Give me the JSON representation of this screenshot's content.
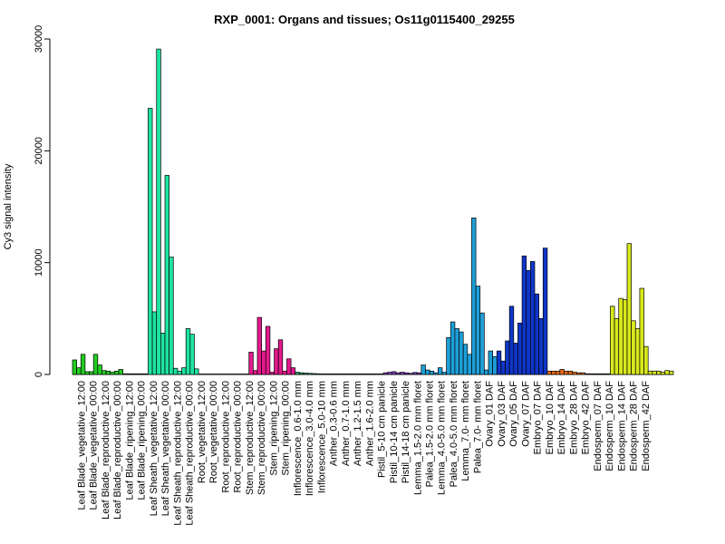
{
  "chart_data": {
    "type": "bar",
    "title": "RXP_0001: Organs and tissues; Os11g0115400_29255",
    "ylabel": "Cy3 signal intensity",
    "ylim": [
      0,
      30000
    ],
    "yticks": [
      0,
      10000,
      20000,
      30000
    ],
    "x_tick_labels": [
      "Leaf Blade_vegetative_12:00",
      "Leaf Blade_vegetative_00:00",
      "Leaf Blade_reproductive_12:00",
      "Leaf Blade_reproductive_00:00",
      "Leaf Blade_ripening_12:00",
      "Leaf Blade_ripening_00:00",
      "Leaf Sheath_vegetative_12:00",
      "Leaf Sheath_vegetative_00:00",
      "Leaf Sheath_reproductive_12:00",
      "Leaf Sheath_reproductive_00:00",
      "Root_vegetative_12:00",
      "Root_vegetative_00:00",
      "Root_reproductive_12:00",
      "Root_reproductive_00:00",
      "Stem_reproductive_12:00",
      "Stem_reproductive_00:00",
      "Stem_ripening_12:00",
      "Stem_ripening_00:00",
      "Inflorescence_0.6-1.0 mm",
      "Inflorescence_3.0-4.0 mm",
      "Inflorescence_5.0-10 mm",
      "Anther_0.3-0.6 mm",
      "Anther_0.7-1.0 mm",
      "Anther_1.2-1.5 mm",
      "Anther_1.6-2.0 mm",
      "Pistil_5-10 cm panicle",
      "Pistil_10-14 cm panicle",
      "Pistil_14-18 cm panicle",
      "Lemma_1.5-2.0 mm floret",
      "Palea_1.5-2.0 mm floret",
      "Lemma_4.0-5.0 mm floret",
      "Palea_4.0-5.0 mm floret",
      "Lemma_7.0- mm floret",
      "Palea_7.0- mm floret",
      "Ovary_01 DAF",
      "Ovary_03 DAF",
      "Ovary_05 DAF",
      "Ovary_07 DAF",
      "Embryo_07 DAF",
      "Embryo_10 DAF",
      "Embryo_14 DAF",
      "Embryo_28 DAF",
      "Embryo_42 DAF",
      "Endosperm_07 DAF",
      "Endosperm_10 DAF",
      "Endosperm_14 DAF",
      "Endosperm_28 DAF",
      "Endosperm_42 DAF"
    ],
    "groups": [
      {
        "color": "#22cc22",
        "values": [
          1300,
          600,
          1800,
          250,
          250,
          1800,
          850,
          350,
          300,
          200,
          300,
          450
        ]
      },
      {
        "color": "#a8d41e",
        "values": [
          60,
          60,
          60,
          60,
          60,
          60
        ]
      },
      {
        "color": "#1ee4a0",
        "values": [
          23800,
          5600,
          29100,
          3700,
          17800,
          10500,
          550,
          300,
          600,
          4100,
          3600,
          500
        ]
      },
      {
        "color": "#7aa0c8",
        "values": [
          40,
          40,
          40,
          40,
          40,
          40,
          40,
          40,
          40,
          40,
          40,
          40
        ]
      },
      {
        "color": "#e41a8c",
        "values": [
          2000,
          350,
          5100,
          2100,
          4300,
          200,
          2300,
          3100,
          300,
          1400,
          600
        ]
      },
      {
        "color": "#22a060",
        "values": [
          200,
          150,
          120,
          100,
          80,
          60,
          50,
          50,
          50
        ]
      },
      {
        "color": "#6a4fb8",
        "values": [
          50,
          50,
          50,
          50,
          50,
          50,
          50,
          50,
          50,
          50,
          50,
          50
        ]
      },
      {
        "color": "#7a3fc0",
        "values": [
          150,
          200,
          250,
          150,
          200,
          150,
          100,
          180,
          150
        ]
      },
      {
        "color": "#1e9fd8",
        "values": [
          850,
          400,
          300,
          150,
          600,
          200,
          3300,
          4700,
          4100,
          3800,
          2700,
          1800,
          14000,
          7900,
          5500,
          400,
          2100,
          1600
        ]
      },
      {
        "color": "#0f36c8",
        "values": [
          2100,
          1200,
          3000,
          6100,
          2800,
          4600,
          10600,
          9300,
          10100,
          7200,
          5000,
          11300
        ]
      },
      {
        "color": "#e86a14",
        "values": [
          300,
          300,
          300,
          450,
          300,
          300,
          200,
          150,
          150,
          60,
          60,
          60,
          60,
          60,
          60
        ]
      },
      {
        "color": "#d8e81e",
        "values": [
          6100,
          5000,
          6800,
          6700,
          11700,
          4800,
          4100,
          7700,
          2500,
          300,
          300,
          300,
          200,
          350,
          300
        ]
      }
    ]
  }
}
